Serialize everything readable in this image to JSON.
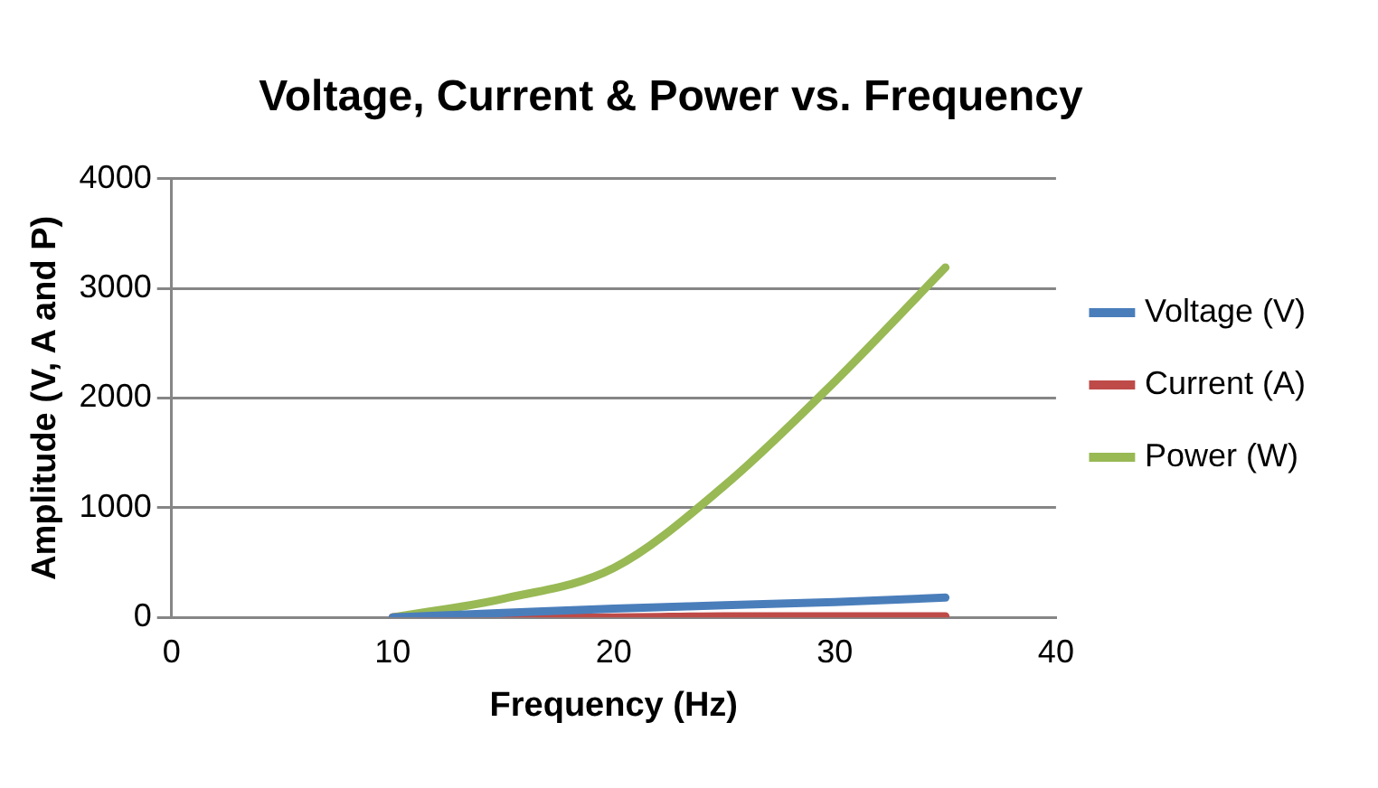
{
  "chart_data": {
    "type": "line",
    "title": "Voltage, Current & Power vs. Frequency",
    "xlabel": "Frequency (Hz)",
    "ylabel": "Amplitude (V, A and P)",
    "x": [
      10,
      15,
      20,
      25,
      30,
      35
    ],
    "series": [
      {
        "name": "Voltage (V)",
        "color": "#4a7ebb",
        "values": [
          0,
          40,
          80,
          110,
          140,
          180
        ]
      },
      {
        "name": "Current (A)",
        "color": "#be4b48",
        "values": [
          0,
          0,
          0,
          10,
          10,
          10
        ]
      },
      {
        "name": "Power (W)",
        "color": "#98b954",
        "values": [
          0,
          170,
          450,
          1200,
          2150,
          3190
        ]
      }
    ],
    "xlim": [
      0,
      40
    ],
    "xticks": [
      0,
      10,
      20,
      30,
      40
    ],
    "ylim": [
      0,
      4000
    ],
    "yticks": [
      0,
      1000,
      2000,
      3000,
      4000
    ],
    "grid": "y",
    "legend": "right",
    "marker": "none",
    "line_style": "solid"
  }
}
